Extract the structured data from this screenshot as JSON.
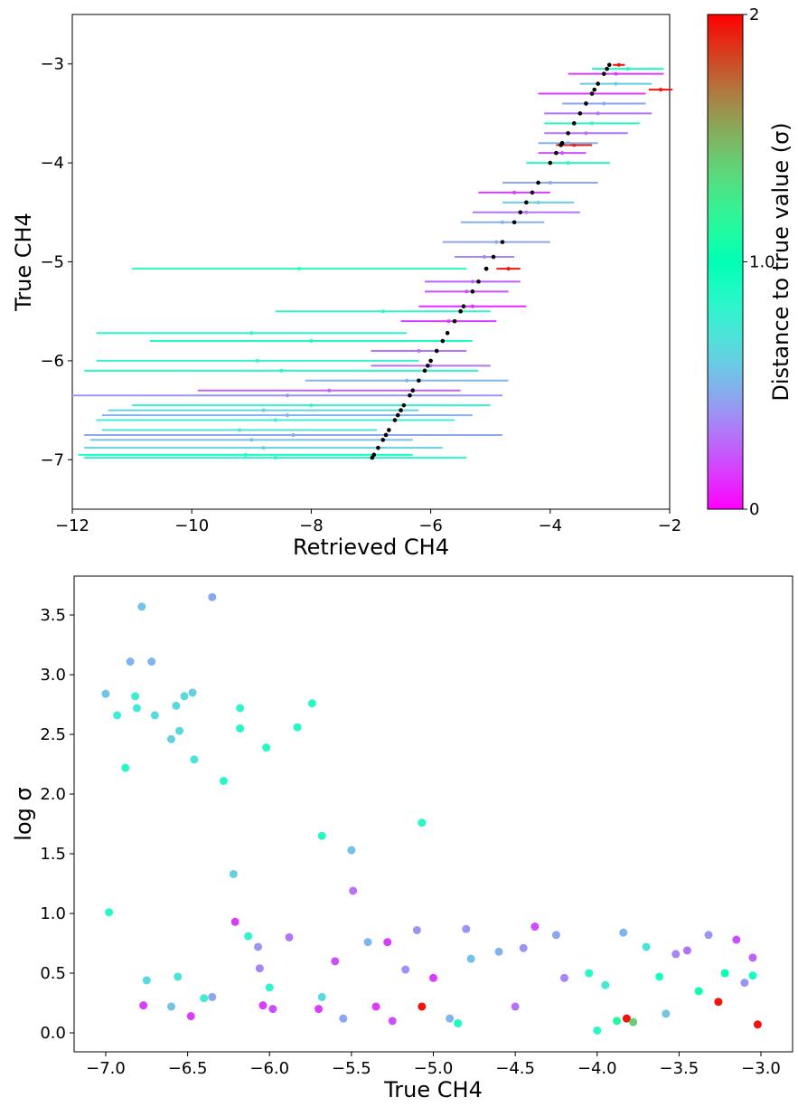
{
  "chart_data": [
    {
      "type": "errorbar",
      "xlabel": "Retrieved CH4",
      "ylabel": "True CH4",
      "xlim": [
        -12,
        -2
      ],
      "ylim": [
        -7.5,
        -2.5
      ],
      "xticks": [
        {
          "value": -12,
          "label": "−12"
        },
        {
          "value": -10,
          "label": "−10"
        },
        {
          "value": -8,
          "label": "−8"
        },
        {
          "value": -6,
          "label": "−6"
        },
        {
          "value": -4,
          "label": "−4"
        },
        {
          "value": -2,
          "label": "−2"
        }
      ],
      "yticks": [
        {
          "value": -7,
          "label": "−7"
        },
        {
          "value": -6,
          "label": "−6"
        },
        {
          "value": -5,
          "label": "−5"
        },
        {
          "value": -4,
          "label": "−4"
        },
        {
          "value": -3,
          "label": "−3"
        }
      ],
      "colormap": "rainbow",
      "clim": [
        0,
        2
      ],
      "true_color": "#000000",
      "colorbar_label": "Distance to true value (σ)",
      "colorbar_ticks": [
        0,
        {
          "value": 1,
          "label": "1.0"
        },
        2
      ],
      "y": [
        -6.98,
        -6.95,
        -6.88,
        -6.8,
        -6.75,
        -6.7,
        -6.6,
        -6.55,
        -6.5,
        -6.45,
        -6.35,
        -6.3,
        -6.2,
        -6.1,
        -6.05,
        -6.0,
        -5.9,
        -5.8,
        -5.72,
        -5.6,
        -5.5,
        -5.45,
        -5.3,
        -5.2,
        -5.07,
        -5.07,
        -4.95,
        -4.8,
        -4.6,
        -4.5,
        -4.4,
        -4.3,
        -4.2,
        -4.0,
        -3.9,
        -3.82,
        -3.8,
        -3.7,
        -3.6,
        -3.5,
        -3.4,
        -3.3,
        -3.26,
        -3.2,
        -3.1,
        -3.05,
        -3.01
      ],
      "x": [
        -8.6,
        -9.1,
        -8.8,
        -9.0,
        -8.3,
        -9.2,
        -8.6,
        -8.4,
        -8.8,
        -8.0,
        -8.4,
        -7.7,
        -6.4,
        -8.5,
        -6.0,
        -8.9,
        -6.2,
        -8.0,
        -9.0,
        -5.7,
        -6.8,
        -5.3,
        -5.4,
        -5.3,
        -8.2,
        -4.7,
        -5.1,
        -4.9,
        -4.8,
        -4.4,
        -4.2,
        -4.6,
        -4.0,
        -3.7,
        -3.8,
        -3.6,
        -3.7,
        -3.4,
        -3.3,
        -3.2,
        -3.1,
        -3.3,
        -2.15,
        -2.9,
        -2.9,
        -2.7,
        -2.85
      ],
      "xerr": [
        3.2,
        2.8,
        3.0,
        2.7,
        3.5,
        2.3,
        3.0,
        3.1,
        2.6,
        3.0,
        3.6,
        2.2,
        1.7,
        3.3,
        1.0,
        2.7,
        0.8,
        2.7,
        2.6,
        0.8,
        1.8,
        0.9,
        0.7,
        0.8,
        2.8,
        0.2,
        0.5,
        0.9,
        0.7,
        0.9,
        0.6,
        0.6,
        0.8,
        0.7,
        0.4,
        0.3,
        0.5,
        0.7,
        0.8,
        0.9,
        0.7,
        0.9,
        0.2,
        0.6,
        0.8,
        0.6,
        0.1
      ],
      "c": [
        0.85,
        0.9,
        0.6,
        0.55,
        0.45,
        0.7,
        0.75,
        0.5,
        0.62,
        0.8,
        0.4,
        0.25,
        0.5,
        0.85,
        0.3,
        0.8,
        0.3,
        0.9,
        0.85,
        0.15,
        0.8,
        0.1,
        0.2,
        0.25,
        0.85,
        1.95,
        0.35,
        0.45,
        0.5,
        0.3,
        0.6,
        0.15,
        0.45,
        0.85,
        0.2,
        1.95,
        0.5,
        0.3,
        0.85,
        0.3,
        0.45,
        0.15,
        1.95,
        0.6,
        0.15,
        0.9,
        1.95
      ]
    },
    {
      "type": "scatter",
      "xlabel": "True CH4",
      "ylabel": "log σ",
      "xlim": [
        -7.193,
        -2.807
      ],
      "ylim": [
        -0.159,
        3.826
      ],
      "xticks": [
        {
          "value": -7,
          "label": "−7.0"
        },
        {
          "value": -6.5,
          "label": "−6.5"
        },
        {
          "value": -6,
          "label": "−6.0"
        },
        {
          "value": -5.5,
          "label": "−5.5"
        },
        {
          "value": -5,
          "label": "−5.0"
        },
        {
          "value": -4.5,
          "label": "−4.5"
        },
        {
          "value": -4,
          "label": "−4.0"
        },
        {
          "value": -3.5,
          "label": "−3.5"
        },
        {
          "value": -3,
          "label": "−3.0"
        }
      ],
      "yticks": [
        {
          "value": 0,
          "label": "0.0"
        },
        0.5,
        {
          "value": 1,
          "label": "1.0"
        },
        1.5,
        {
          "value": 2,
          "label": "2.0"
        },
        2.5,
        {
          "value": 3,
          "label": "3.0"
        },
        3.5
      ],
      "colormap": "rainbow",
      "clim": [
        0,
        2
      ],
      "x": [
        -7.0,
        -6.98,
        -6.93,
        -6.88,
        -6.85,
        -6.82,
        -6.81,
        -6.78,
        -6.77,
        -6.75,
        -6.72,
        -6.7,
        -6.6,
        -6.6,
        -6.57,
        -6.56,
        -6.55,
        -6.52,
        -6.48,
        -6.47,
        -6.46,
        -6.4,
        -6.35,
        -6.35,
        -6.28,
        -6.22,
        -6.21,
        -6.18,
        -6.18,
        -6.13,
        -6.07,
        -6.06,
        -6.04,
        -6.02,
        -6.0,
        -5.98,
        -5.88,
        -5.83,
        -5.74,
        -5.68,
        -5.68,
        -5.7,
        -5.6,
        -5.55,
        -5.5,
        -5.49,
        -5.4,
        -5.35,
        -5.28,
        -5.25,
        -5.17,
        -5.1,
        -5.07,
        -5.07,
        -5.0,
        -4.9,
        -4.85,
        -4.8,
        -4.77,
        -4.6,
        -4.5,
        -4.45,
        -4.38,
        -4.25,
        -4.2,
        -4.05,
        -4.0,
        -3.95,
        -3.88,
        -3.84,
        -3.82,
        -3.78,
        -3.7,
        -3.62,
        -3.58,
        -3.52,
        -3.45,
        -3.38,
        -3.32,
        -3.26,
        -3.22,
        -3.15,
        -3.1,
        -3.05,
        -3.02,
        -3.05
      ],
      "y": [
        2.84,
        1.01,
        2.66,
        2.22,
        3.11,
        2.82,
        2.72,
        3.57,
        0.23,
        0.44,
        3.11,
        2.66,
        2.46,
        0.22,
        2.74,
        0.47,
        2.53,
        2.82,
        0.14,
        2.85,
        2.29,
        0.29,
        3.65,
        0.3,
        2.11,
        1.33,
        0.93,
        2.72,
        2.55,
        0.81,
        0.72,
        0.54,
        0.23,
        2.39,
        0.38,
        0.2,
        0.8,
        2.56,
        2.76,
        1.65,
        0.3,
        0.2,
        0.6,
        0.12,
        1.53,
        1.19,
        0.76,
        0.22,
        0.76,
        0.1,
        0.53,
        0.86,
        1.76,
        0.22,
        0.46,
        0.12,
        0.08,
        0.87,
        0.62,
        0.68,
        0.22,
        0.71,
        0.89,
        0.82,
        0.46,
        0.5,
        0.02,
        0.4,
        0.1,
        0.84,
        0.12,
        0.09,
        0.72,
        0.47,
        0.16,
        0.66,
        0.69,
        0.35,
        0.82,
        0.26,
        0.5,
        0.78,
        0.42,
        0.48,
        0.07,
        0.63
      ],
      "c": [
        0.55,
        0.85,
        0.75,
        0.85,
        0.5,
        0.75,
        0.75,
        0.55,
        0.15,
        0.65,
        0.5,
        0.65,
        0.6,
        0.55,
        0.65,
        0.7,
        0.65,
        0.65,
        0.15,
        0.6,
        0.7,
        0.75,
        0.45,
        0.45,
        0.85,
        0.6,
        0.15,
        0.8,
        0.85,
        0.8,
        0.4,
        0.35,
        0.15,
        0.85,
        0.8,
        0.2,
        0.3,
        0.85,
        0.85,
        0.85,
        0.65,
        0.15,
        0.2,
        0.45,
        0.55,
        0.3,
        0.5,
        0.15,
        0.15,
        0.2,
        0.4,
        0.4,
        0.85,
        1.95,
        0.15,
        0.5,
        0.9,
        0.4,
        0.55,
        0.5,
        0.3,
        0.4,
        0.2,
        0.45,
        0.35,
        0.85,
        0.85,
        0.75,
        1.15,
        0.5,
        1.95,
        1.4,
        0.7,
        0.9,
        0.55,
        0.35,
        0.3,
        1.05,
        0.4,
        1.95,
        1.0,
        0.2,
        0.4,
        0.9,
        1.95,
        0.25
      ]
    }
  ]
}
